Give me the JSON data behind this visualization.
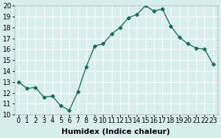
{
  "x": [
    0,
    1,
    2,
    3,
    4,
    5,
    6,
    7,
    8,
    9,
    10,
    11,
    12,
    13,
    14,
    15,
    16,
    17,
    18,
    19,
    20,
    21,
    22,
    23
  ],
  "y": [
    13.0,
    12.4,
    12.5,
    11.6,
    11.7,
    10.8,
    10.4,
    12.1,
    14.4,
    16.3,
    16.5,
    17.4,
    18.0,
    18.9,
    19.2,
    20.0,
    19.5,
    19.7,
    18.1,
    17.1,
    16.5,
    16.1,
    16.0,
    14.6
  ],
  "xlabel": "Humidex (Indice chaleur)",
  "ylim": [
    10,
    20
  ],
  "xlim_min": -0.5,
  "xlim_max": 23.5,
  "line_color": "#1a6b5a",
  "bg_color": "#d8eeeb",
  "grid_color": "#ffffff",
  "label_fontsize": 8,
  "tick_fontsize": 7
}
